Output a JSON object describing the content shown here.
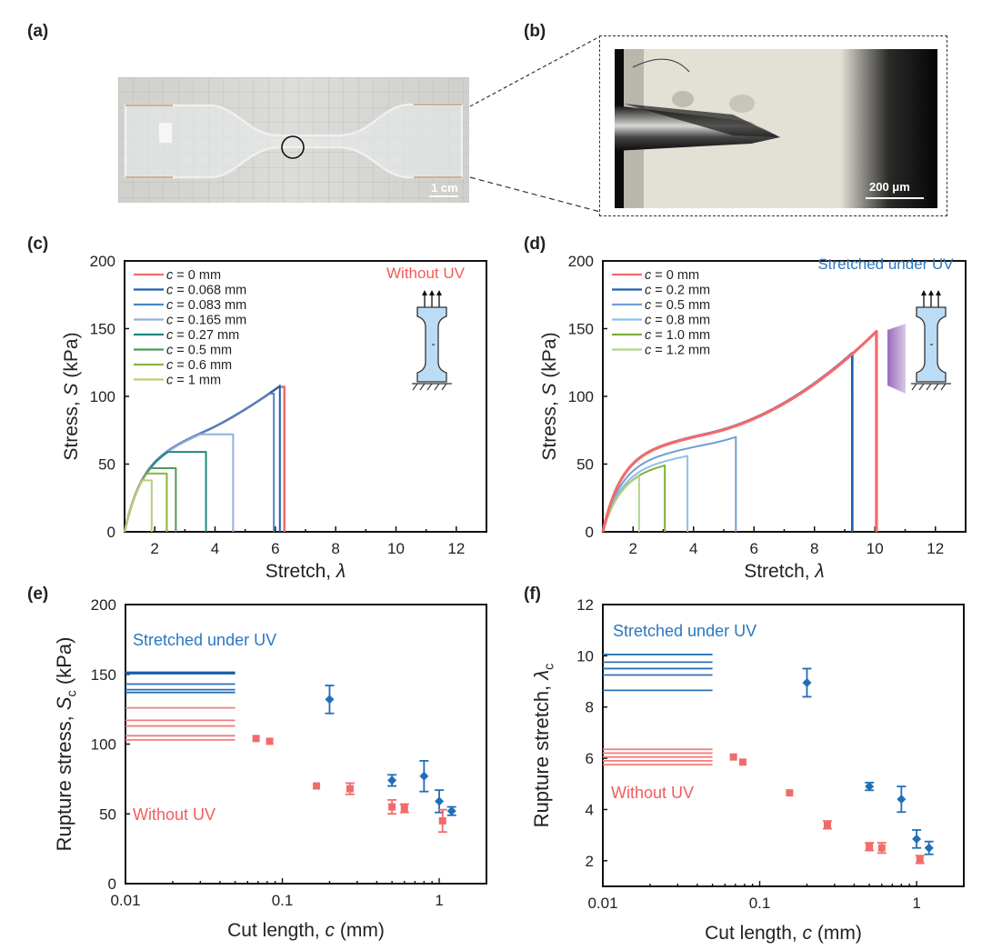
{
  "panels": {
    "a": {
      "label": "(a)",
      "scale_bar": "1 cm"
    },
    "b": {
      "label": "(b)",
      "scale_bar": "200 μm"
    }
  },
  "colors": {
    "red": "#f26b6b",
    "blue": "#1f6fb8",
    "annot_red": "#f25c5c",
    "annot_blue": "#2a78c0"
  },
  "chart_data": [
    {
      "id": "c",
      "label": "(c)",
      "type": "line",
      "title": "",
      "annotation": "Without UV",
      "xlabel": "Stretch, λ",
      "ylabel": "Stress, S (kPa)",
      "xlim": [
        1,
        13
      ],
      "ylim": [
        0,
        200
      ],
      "xticks": [
        2,
        4,
        6,
        8,
        10,
        12
      ],
      "yticks": [
        0,
        50,
        100,
        150,
        200
      ],
      "legend_position": "top-left",
      "series": [
        {
          "name": "c = 0 mm",
          "color": "#f26b6b",
          "rupture_stretch": 6.3,
          "rupture_stress": 107
        },
        {
          "name": "c = 0.068 mm",
          "color": "#1f5fae",
          "rupture_stretch": 6.15,
          "rupture_stress": 108
        },
        {
          "name": "c = 0.083 mm",
          "color": "#4a86c8",
          "rupture_stretch": 5.95,
          "rupture_stress": 102
        },
        {
          "name": "c = 0.165 mm",
          "color": "#8fb0de",
          "rupture_stretch": 4.6,
          "rupture_stress": 72
        },
        {
          "name": "c = 0.27 mm",
          "color": "#1f8a7a",
          "rupture_stretch": 3.7,
          "rupture_stress": 59
        },
        {
          "name": "c = 0.5 mm",
          "color": "#4f9a5a",
          "rupture_stretch": 2.7,
          "rupture_stress": 47
        },
        {
          "name": "c = 0.6 mm",
          "color": "#8ab440",
          "rupture_stretch": 2.4,
          "rupture_stress": 43
        },
        {
          "name": "c = 1 mm",
          "color": "#b6d07a",
          "rupture_stretch": 1.9,
          "rupture_stress": 38
        }
      ]
    },
    {
      "id": "d",
      "label": "(d)",
      "type": "line",
      "title": "",
      "annotation": "Stretched under UV",
      "xlabel": "Stretch, λ",
      "ylabel": "Stress, S (kPa)",
      "xlim": [
        1,
        13
      ],
      "ylim": [
        0,
        200
      ],
      "xticks": [
        2,
        4,
        6,
        8,
        10,
        12
      ],
      "yticks": [
        0,
        50,
        100,
        150,
        200
      ],
      "legend_position": "top-left",
      "series": [
        {
          "name": "c = 0 mm",
          "color": "#f26b6b",
          "rupture_stretch": 10.05,
          "rupture_stress": 148
        },
        {
          "name": "c = 0.2 mm",
          "color": "#1f5fae",
          "rupture_stretch": 9.25,
          "rupture_stress": 132
        },
        {
          "name": "c = 0.5 mm",
          "color": "#6f9fd6",
          "rupture_stretch": 5.4,
          "rupture_stress": 70
        },
        {
          "name": "c = 0.8 mm",
          "color": "#8ec0e8",
          "rupture_stretch": 3.8,
          "rupture_stress": 56
        },
        {
          "name": "c = 1.0 mm",
          "color": "#7fae38",
          "rupture_stretch": 3.05,
          "rupture_stress": 49
        },
        {
          "name": "c = 1.2 mm",
          "color": "#b2d48a",
          "rupture_stretch": 2.2,
          "rupture_stress": 41
        }
      ]
    },
    {
      "id": "e",
      "label": "(e)",
      "type": "scatter",
      "xscale": "log",
      "xlabel": "Cut length, c (mm)",
      "ylabel": "Rupture stress, S_c (kPa)",
      "xlim": [
        0.01,
        2
      ],
      "ylim": [
        0,
        200
      ],
      "xticks": [
        "0.01",
        "0.1",
        "1"
      ],
      "yticks": [
        0,
        50,
        100,
        150,
        200
      ],
      "annotations": [
        "Stretched under UV",
        "Without UV"
      ],
      "uncut_reference_lines": {
        "stretched_under_uv": [
          151,
          143,
          139,
          137
        ],
        "without_uv": [
          126,
          117,
          113,
          106,
          103
        ]
      },
      "series": [
        {
          "name": "Stretched under UV",
          "color": "#1f6fb8",
          "marker": "diamond",
          "points": [
            {
              "x": 0.2,
              "y": 132,
              "err": 10
            },
            {
              "x": 0.5,
              "y": 74,
              "err": 4
            },
            {
              "x": 0.8,
              "y": 77,
              "err": 11
            },
            {
              "x": 1.0,
              "y": 59,
              "err": 8
            },
            {
              "x": 1.2,
              "y": 52,
              "err": 3
            }
          ]
        },
        {
          "name": "Without UV",
          "color": "#f26b6b",
          "marker": "square",
          "points": [
            {
              "x": 0.068,
              "y": 104,
              "err": 0
            },
            {
              "x": 0.083,
              "y": 102,
              "err": 0
            },
            {
              "x": 0.165,
              "y": 70,
              "err": 0
            },
            {
              "x": 0.27,
              "y": 68,
              "err": 4
            },
            {
              "x": 0.5,
              "y": 55,
              "err": 5
            },
            {
              "x": 0.6,
              "y": 54,
              "err": 3
            },
            {
              "x": 1.05,
              "y": 45,
              "err": 8
            }
          ]
        }
      ]
    },
    {
      "id": "f",
      "label": "(f)",
      "type": "scatter",
      "xscale": "log",
      "xlabel": "Cut length, c (mm)",
      "ylabel": "Rupture stretch, λ_c",
      "xlim": [
        0.01,
        2
      ],
      "ylim": [
        1,
        12
      ],
      "xticks": [
        "0.01",
        "0.1",
        "1"
      ],
      "yticks": [
        2,
        4,
        6,
        8,
        10,
        12
      ],
      "annotations": [
        "Stretched under UV",
        "Without UV"
      ],
      "uncut_reference_lines": {
        "stretched_under_uv": [
          10.05,
          9.75,
          9.5,
          9.25,
          8.65
        ],
        "without_uv": [
          6.35,
          6.2,
          6.05,
          5.9,
          5.75
        ]
      },
      "series": [
        {
          "name": "Stretched under UV",
          "color": "#1f6fb8",
          "marker": "diamond",
          "points": [
            {
              "x": 0.2,
              "y": 8.95,
              "err": 0.55
            },
            {
              "x": 0.5,
              "y": 4.9,
              "err": 0.15
            },
            {
              "x": 0.8,
              "y": 4.4,
              "err": 0.5
            },
            {
              "x": 1.0,
              "y": 2.85,
              "err": 0.35
            },
            {
              "x": 1.2,
              "y": 2.5,
              "err": 0.25
            }
          ]
        },
        {
          "name": "Without UV",
          "color": "#f26b6b",
          "marker": "square",
          "points": [
            {
              "x": 0.068,
              "y": 6.05,
              "err": 0
            },
            {
              "x": 0.078,
              "y": 5.85,
              "err": 0
            },
            {
              "x": 0.155,
              "y": 4.65,
              "err": 0
            },
            {
              "x": 0.27,
              "y": 3.4,
              "err": 0.15
            },
            {
              "x": 0.5,
              "y": 2.55,
              "err": 0.15
            },
            {
              "x": 0.6,
              "y": 2.5,
              "err": 0.2
            },
            {
              "x": 1.05,
              "y": 2.05,
              "err": 0.15
            }
          ]
        }
      ]
    }
  ]
}
